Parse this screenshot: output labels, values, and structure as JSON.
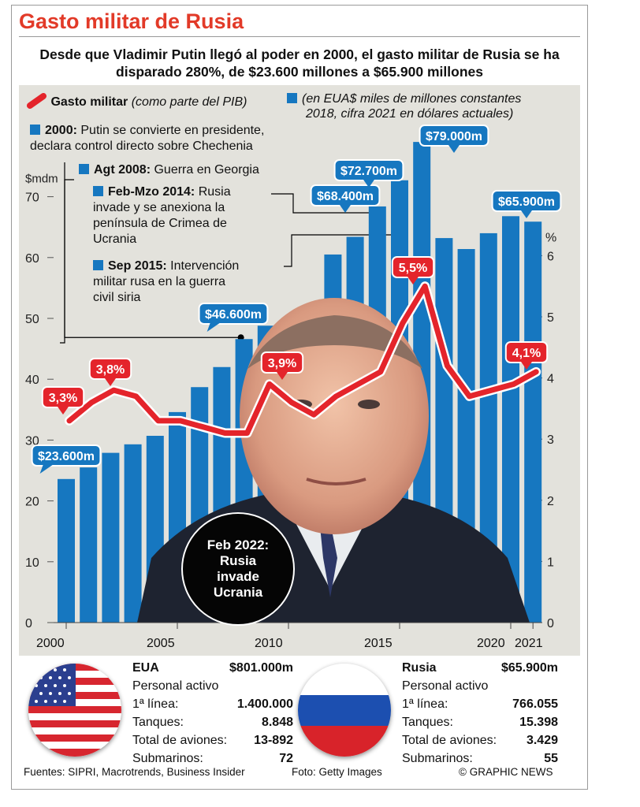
{
  "title": "Gasto militar de Rusia",
  "subtitle": "Desde que Vladimir Putin llegó al poder en 2000, el gasto militar de Rusia se ha disparado 280%, de $23.600 millones a $65.900 millones",
  "legend": {
    "line_label": "Gasto militar",
    "line_note": "(como parte del PIB)",
    "bar_note_1": "(en EUA$ miles de millones constantes",
    "bar_note_2": "2018, cifra 2021 en dólares actuales)"
  },
  "events": [
    {
      "bold": "2000:",
      "text_1": " Putin se convierte en presidente,",
      "text_2": "declara control directo sobre Chechenia"
    },
    {
      "bold": "Agt 2008:",
      "text_1": " Guerra en Georgia"
    },
    {
      "bold": "Feb-Mzo 2014:",
      "text_1": " Rusia",
      "text_2": "invade y se anexiona la",
      "text_3": "península de Crimea de",
      "text_4": "Ucrania"
    },
    {
      "bold": "Sep 2015:",
      "text_1": " Intervención",
      "text_2": "militar rusa en la guerra",
      "text_3": "civil siria"
    }
  ],
  "circle": {
    "line_1": "Feb 2022:",
    "line_2": "Rusia",
    "line_3": "invade",
    "line_4": "Ucrania"
  },
  "chart_data": {
    "type": "bar",
    "title": "Gasto militar de Rusia",
    "categories": [
      "2000",
      "2001",
      "2002",
      "2003",
      "2004",
      "2005",
      "2006",
      "2007",
      "2008",
      "2009",
      "2010",
      "2011",
      "2012",
      "2013",
      "2014",
      "2015",
      "2016",
      "2017",
      "2018",
      "2019",
      "2020",
      "2021"
    ],
    "series": [
      {
        "name": "en EUA$ miles de millones constantes 2018, cifra 2021 en dólares actuales",
        "axis": "left",
        "values": [
          23.6,
          25.5,
          27.9,
          29.3,
          30.7,
          34.6,
          38.7,
          42.0,
          46.6,
          48.8,
          49.1,
          52.1,
          60.5,
          63.4,
          68.4,
          72.7,
          79.0,
          63.2,
          61.4,
          64.0,
          66.8,
          65.9
        ]
      },
      {
        "name": "Gasto militar (como parte del PIB)",
        "axis": "right",
        "type": "line",
        "values": [
          3.3,
          3.6,
          3.8,
          3.7,
          3.3,
          3.3,
          3.2,
          3.1,
          3.1,
          3.9,
          3.6,
          3.4,
          3.7,
          3.9,
          4.1,
          4.9,
          5.5,
          4.2,
          3.7,
          3.8,
          3.9,
          4.1
        ]
      }
    ],
    "ylabel": "$mdm",
    "ylim": [
      0,
      75
    ],
    "yticks": [
      "0",
      "10",
      "20",
      "30",
      "40",
      "50",
      "60",
      "70"
    ],
    "y2label": "%",
    "y2lim": [
      0,
      6.1
    ],
    "y2ticks": [
      "0",
      "1",
      "2",
      "3",
      "4",
      "5",
      "6"
    ],
    "xticks": [
      "2000",
      "2005",
      "2010",
      "2015",
      "2020",
      "2021"
    ],
    "bar_labels": [
      {
        "index": 0,
        "text": "$23.600m"
      },
      {
        "index": 8,
        "text": "$46.600m"
      },
      {
        "index": 14,
        "text": "$68.400m"
      },
      {
        "index": 15,
        "text": "$72.700m"
      },
      {
        "index": 16,
        "text": "$79.000m"
      },
      {
        "index": 21,
        "text": "$65.900m"
      }
    ],
    "line_labels": [
      {
        "index": 0,
        "text": "3,3%"
      },
      {
        "index": 2,
        "text": "3,8%"
      },
      {
        "index": 9,
        "text": "3,9%"
      },
      {
        "index": 16,
        "text": "5,5%"
      },
      {
        "index": 21,
        "text": "4,1%"
      }
    ]
  },
  "comparison": {
    "usa": {
      "country": "EUA",
      "spending": "$801.000m",
      "personnel": "Personal activo",
      "active_label": "1ª línea:",
      "active": "1.400.000",
      "tanks_label": "Tanques:",
      "tanks": "8.848",
      "aircraft_label": "Total de aviones:",
      "aircraft": "13-892",
      "subs_label": "Submarinos:",
      "subs": "72"
    },
    "russia": {
      "country": "Rusia",
      "spending": "$65.900m",
      "personnel": "Personal activo",
      "active_label": "1ª línea:",
      "active": "766.055",
      "tanks_label": "Tanques:",
      "tanks": "15.398",
      "aircraft_label": "Total de aviones:",
      "aircraft": "3.429",
      "subs_label": "Submarinos:",
      "subs": "55"
    }
  },
  "footer": {
    "sources": "Fuentes: SIPRI, Macrotrends, Business Insider",
    "photo": "Foto: Getty Images",
    "credit": "© GRAPHIC NEWS"
  },
  "colors": {
    "title": "#e23a28",
    "bar": "#1677c0",
    "line": "#e4242b",
    "panel": "#e3e2dc"
  }
}
